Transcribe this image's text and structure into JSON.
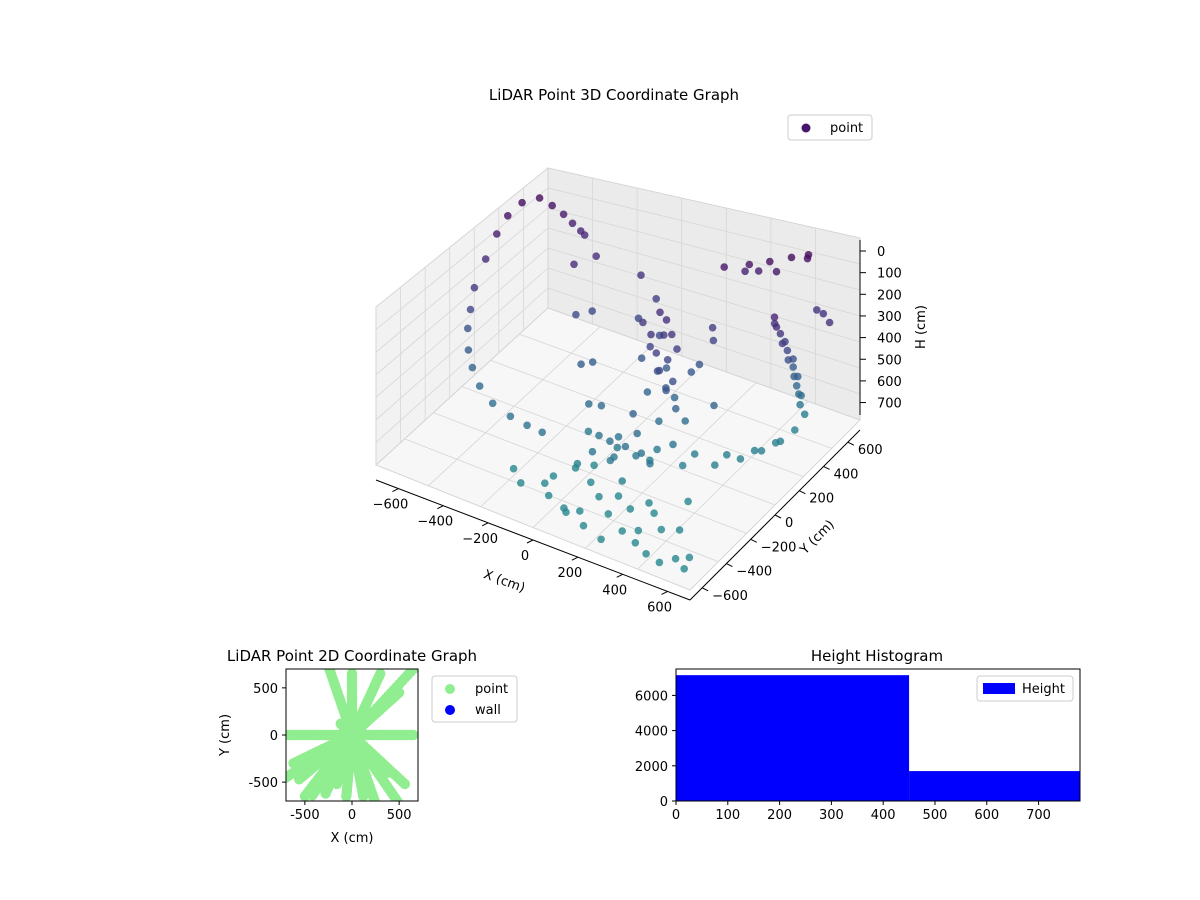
{
  "chart_data": [
    {
      "type": "scatter",
      "projection": "3d",
      "title": "LiDAR Point 3D Coordinate Graph",
      "xlabel": "X (cm)",
      "ylabel": "Y (cm)",
      "zlabel": "H (cm)",
      "xlim": [
        -700,
        700
      ],
      "ylim": [
        -700,
        700
      ],
      "zlim": [
        0,
        780
      ],
      "z_inverted": true,
      "xticks": [
        "−600",
        "−400",
        "−200",
        "0",
        "200",
        "400",
        "600"
      ],
      "yticks": [
        "−600",
        "−400",
        "−200",
        "0",
        "200",
        "400",
        "600"
      ],
      "zticks": [
        "0",
        "100",
        "200",
        "300",
        "400",
        "500",
        "600",
        "700"
      ],
      "grid": true,
      "legend": {
        "placement": "top-right",
        "entries": [
          {
            "label": "point",
            "color": "#46166b"
          }
        ]
      },
      "colormap": "viridis",
      "series": [
        {
          "name": "point",
          "points": [
            [
              -650,
              10,
              250
            ],
            [
              -640,
              -40,
              330
            ],
            [
              -630,
              -80,
              400
            ],
            [
              -600,
              -130,
              470
            ],
            [
              -560,
              -170,
              520
            ],
            [
              -500,
              -220,
              560
            ],
            [
              -420,
              -260,
              590
            ],
            [
              -330,
              -280,
              605
            ],
            [
              -250,
              -290,
              610
            ],
            [
              -180,
              -295,
              612
            ],
            [
              -660,
              120,
              170
            ],
            [
              -665,
              220,
              100
            ],
            [
              -660,
              300,
              50
            ],
            [
              -640,
              380,
              20
            ],
            [
              -600,
              450,
              20
            ],
            [
              -560,
              480,
              60
            ],
            [
              -520,
              500,
              100
            ],
            [
              -480,
              500,
              130
            ],
            [
              -440,
              495,
              150
            ],
            [
              -420,
              490,
              160
            ],
            [
              -380,
              330,
              200
            ],
            [
              -300,
              200,
              350
            ],
            [
              -200,
              60,
              480
            ],
            [
              -100,
              -60,
              570
            ],
            [
              0,
              -160,
              630
            ],
            [
              100,
              -220,
              660
            ],
            [
              -330,
              420,
              190
            ],
            [
              -260,
              260,
              350
            ],
            [
              -170,
              100,
              480
            ],
            [
              -60,
              -30,
              580
            ],
            [
              60,
              -110,
              640
            ],
            [
              160,
              -150,
              670
            ],
            [
              -140,
              440,
              220
            ],
            [
              -80,
              310,
              340
            ],
            [
              0,
              190,
              440
            ],
            [
              80,
              90,
              520
            ],
            [
              170,
              20,
              590
            ],
            [
              260,
              -30,
              640
            ],
            [
              -50,
              400,
              280
            ],
            [
              20,
              300,
              380
            ],
            [
              100,
              210,
              460
            ],
            [
              180,
              130,
              530
            ],
            [
              260,
              70,
              580
            ],
            [
              0,
              200,
              260
            ],
            [
              60,
              150,
              330
            ],
            [
              120,
              100,
              400
            ],
            [
              180,
              60,
              450
            ],
            [
              240,
              30,
              500
            ],
            [
              60,
              230,
              200
            ],
            [
              110,
              170,
              260
            ],
            [
              160,
              110,
              330
            ],
            [
              210,
              60,
              390
            ],
            [
              80,
              120,
              240
            ],
            [
              120,
              90,
              300
            ],
            [
              150,
              60,
              360
            ],
            [
              190,
              40,
              420
            ],
            [
              100,
              210,
              210
            ],
            [
              140,
              180,
              250
            ],
            [
              180,
              150,
              290
            ],
            [
              -80,
              -100,
              680
            ],
            [
              60,
              -120,
              690
            ],
            [
              200,
              -110,
              700
            ],
            [
              320,
              -60,
              705
            ],
            [
              420,
              20,
              708
            ],
            [
              480,
              120,
              712
            ],
            [
              520,
              220,
              715
            ],
            [
              550,
              320,
              715
            ],
            [
              560,
              420,
              715
            ],
            [
              200,
              -50,
              680
            ],
            [
              330,
              20,
              690
            ],
            [
              430,
              100,
              700
            ],
            [
              500,
              200,
              710
            ],
            [
              540,
              300,
              715
            ],
            [
              470,
              420,
              200
            ],
            [
              500,
              450,
              300
            ],
            [
              520,
              480,
              400
            ],
            [
              530,
              500,
              500
            ],
            [
              540,
              510,
              600
            ],
            [
              550,
              520,
              700
            ],
            [
              480,
              400,
              150
            ],
            [
              490,
              430,
              250
            ],
            [
              505,
              460,
              350
            ],
            [
              515,
              490,
              450
            ],
            [
              525,
              500,
              550
            ],
            [
              535,
              510,
              650
            ],
            [
              500,
              380,
              180
            ],
            [
              510,
              410,
              280
            ],
            [
              520,
              440,
              380
            ],
            [
              530,
              470,
              480
            ],
            [
              540,
              490,
              580
            ],
            [
              200,
              500,
              70
            ],
            [
              280,
              560,
              60
            ],
            [
              350,
              600,
              40
            ],
            [
              420,
              650,
              20
            ],
            [
              480,
              680,
              0
            ],
            [
              470,
              690,
              30
            ],
            [
              380,
              600,
              80
            ],
            [
              300,
              600,
              110
            ],
            [
              250,
              580,
              120
            ],
            [
              550,
              620,
              220
            ],
            [
              590,
              600,
              210
            ],
            [
              640,
              560,
              210
            ],
            [
              120,
              -100,
              500
            ],
            [
              160,
              -140,
              560
            ],
            [
              200,
              -180,
              620
            ],
            [
              140,
              -200,
              600
            ],
            [
              250,
              -200,
              640
            ],
            [
              60,
              -180,
              620
            ],
            [
              100,
              -250,
              660
            ],
            [
              180,
              -300,
              700
            ],
            [
              20,
              -250,
              650
            ],
            [
              -20,
              -300,
              700
            ],
            [
              230,
              350,
              280
            ],
            [
              250,
              320,
              320
            ],
            [
              220,
              260,
              420
            ],
            [
              200,
              230,
              450
            ],
            [
              340,
              160,
              520
            ],
            [
              0,
              -200,
              760
            ],
            [
              -50,
              -260,
              760
            ],
            [
              40,
              -300,
              770
            ],
            [
              120,
              -380,
              760
            ],
            [
              -100,
              -350,
              770
            ],
            [
              180,
              -330,
              760
            ],
            [
              260,
              -380,
              760
            ],
            [
              300,
              -300,
              760
            ],
            [
              350,
              -350,
              760
            ],
            [
              420,
              -200,
              760
            ],
            [
              -100,
              -420,
              765
            ],
            [
              -50,
              -480,
              770
            ],
            [
              40,
              -520,
              770
            ],
            [
              200,
              -450,
              770
            ],
            [
              300,
              -520,
              770
            ],
            [
              350,
              -480,
              770
            ],
            [
              420,
              -420,
              770
            ],
            [
              480,
              -380,
              770
            ],
            [
              100,
              -500,
              770
            ],
            [
              60,
              -540,
              770
            ],
            [
              380,
              -560,
              770
            ],
            [
              450,
              -600,
              770
            ],
            [
              520,
              -620,
              770
            ],
            [
              560,
              -560,
              770
            ],
            [
              600,
              -520,
              770
            ],
            [
              -250,
              -400,
              770
            ],
            [
              -180,
              -470,
              770
            ],
            [
              160,
              -580,
              770
            ],
            [
              260,
              -620,
              770
            ],
            [
              620,
              -600,
              770
            ]
          ]
        }
      ]
    },
    {
      "type": "scatter",
      "title": "LiDAR Point 2D Coordinate Graph",
      "xlabel": "X (cm)",
      "ylabel": "Y (cm)",
      "xlim": [
        -700,
        700
      ],
      "ylim": [
        -700,
        700
      ],
      "xticks": [
        -500,
        0,
        500
      ],
      "yticks": [
        -500,
        0,
        500
      ],
      "legend": {
        "placement": "outside-right",
        "entries": [
          {
            "label": "point",
            "color": "#90ee90"
          },
          {
            "label": "wall",
            "color": "#0000ff"
          }
        ]
      },
      "series": [
        {
          "name": "point",
          "color": "#90ee90",
          "points": [
            [
              -240,
              700
            ],
            [
              650,
              700
            ],
            [
              650,
              0
            ],
            [
              -700,
              0
            ],
            [
              -700,
              -450
            ],
            [
              -560,
              -470
            ],
            [
              -500,
              -650
            ],
            [
              -280,
              -620
            ],
            [
              -160,
              -520
            ],
            [
              -60,
              -650
            ],
            [
              120,
              -650
            ],
            [
              160,
              -560
            ],
            [
              240,
              -700
            ],
            [
              480,
              -700
            ],
            [
              380,
              -400
            ],
            [
              560,
              -520
            ],
            [
              100,
              50
            ],
            [
              -120,
              120
            ],
            [
              -300,
              -250
            ],
            [
              -620,
              -300
            ],
            [
              -420,
              -640
            ],
            [
              0,
              650
            ],
            [
              300,
              650
            ],
            [
              500,
              450
            ]
          ]
        },
        {
          "name": "wall",
          "color": "#0000ff",
          "points": []
        }
      ]
    },
    {
      "type": "bar",
      "title": "Height Histogram",
      "xlabel": "",
      "ylabel": "",
      "xlim": [
        0,
        780
      ],
      "ylim": [
        0,
        7500
      ],
      "xticks": [
        0,
        100,
        200,
        300,
        400,
        500,
        600,
        700
      ],
      "yticks": [
        0,
        2000,
        4000,
        6000
      ],
      "legend": {
        "placement": "top-right",
        "entries": [
          {
            "label": "Height",
            "color": "#0000ff"
          }
        ]
      },
      "bins": [
        {
          "start": 0,
          "end": 450,
          "value": 7150
        },
        {
          "start": 450,
          "end": 780,
          "value": 1700
        }
      ],
      "color": "#0000ff"
    }
  ]
}
